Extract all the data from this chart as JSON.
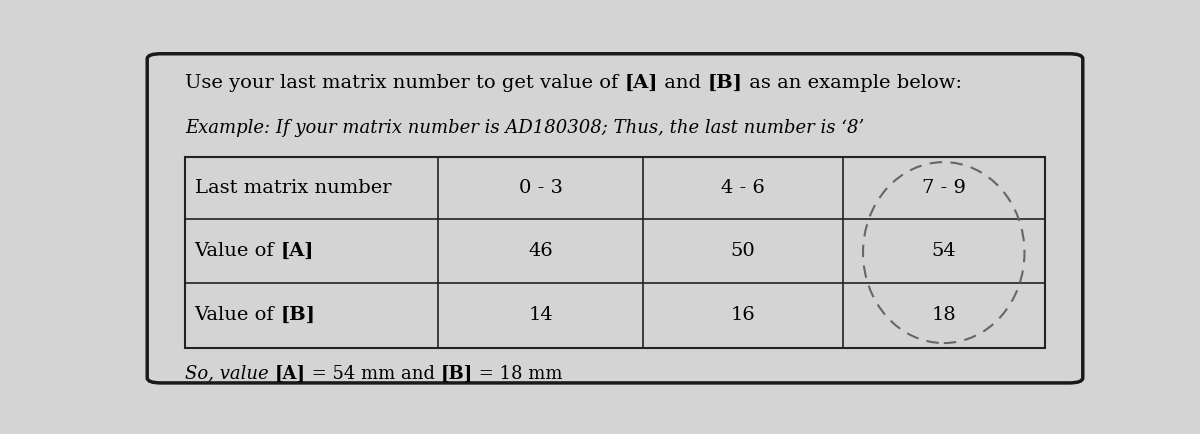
{
  "bg_color": "#d4d4d4",
  "outer_border_color": "#1a1a1a",
  "table_border_color": "#222222",
  "text_color": "#000000",
  "font_size_title": 14,
  "font_size_example": 13,
  "font_size_table": 14,
  "font_size_footer": 13,
  "table_headers": [
    "Last matrix number",
    "0 - 3",
    "4 - 6",
    "7 - 9"
  ],
  "table_row1_label": "Value of ",
  "table_row1_bold": "[A]",
  "table_row1_vals": [
    "46",
    "50",
    "54"
  ],
  "table_row2_label": "Value of ",
  "table_row2_bold": "[B]",
  "table_row2_vals": [
    "14",
    "16",
    "18"
  ],
  "title_prefix": "Use your last matrix number to get value of ",
  "title_A": "[A]",
  "title_mid": " and ",
  "title_B": "[B]",
  "title_suffix": " as an example below:",
  "example_line": "Example: If your matrix number is AD180308; Thus, the last number is ‘8’",
  "footer_italic1": "So, value ",
  "footer_bold1": "[A]",
  "footer_mid": " = 54 mm and ",
  "footer_bold2": "[B]",
  "footer_end": " = 18 mm",
  "ellipse_color": "#666666"
}
